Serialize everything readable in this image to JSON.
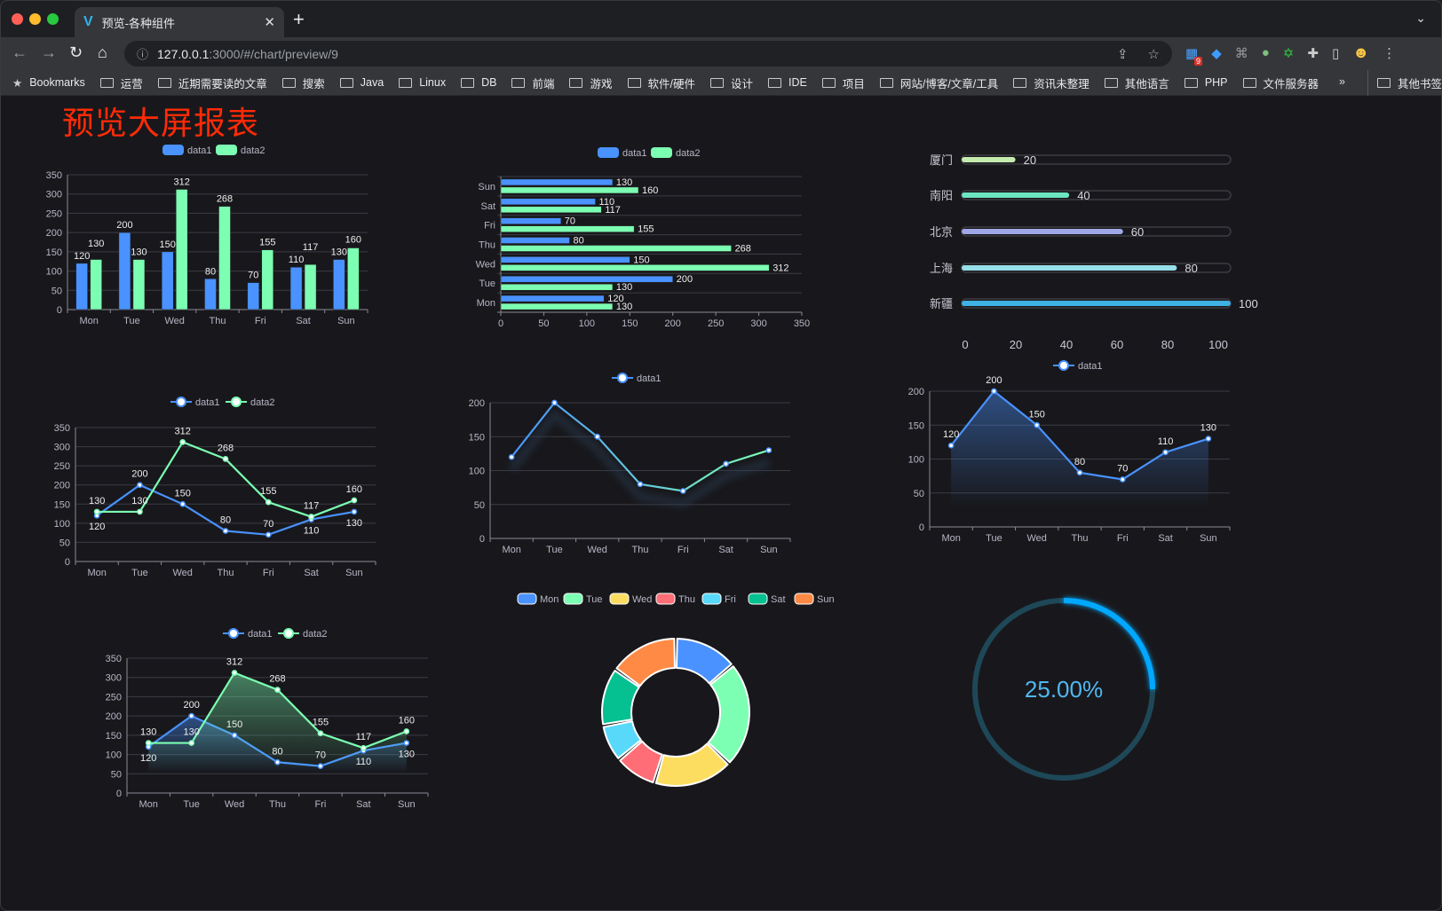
{
  "browser": {
    "tab_title": "预览-各种组件",
    "url_host": "127.0.0.1",
    "url_rest": ":3000/#/chart/preview/9",
    "extension_badge": "9",
    "bookmarks_label": "Bookmarks",
    "bookmarks": [
      "运营",
      "近期需要读的文章",
      "搜索",
      "Java",
      "Linux",
      "DB",
      "前端",
      "游戏",
      "软件/硬件",
      "设计",
      "IDE",
      "项目",
      "网站/博客/文章/工具",
      "资讯未整理",
      "其他语言",
      "PHP",
      "文件服务器"
    ],
    "more": "»",
    "other_bookmarks": "其他书签"
  },
  "page_title": "预览大屏报表",
  "colors": {
    "blue": "#4992ff",
    "green": "#7cffb2",
    "yellow": "#fddd60",
    "red": "#ff6e76",
    "cyan": "#58d9f9",
    "teal": "#05c091",
    "orange": "#ff8a45",
    "title": "#ff2b06",
    "gauge": "#00a8ff"
  },
  "chart_data": [
    {
      "type": "bar",
      "orientation": "vertical",
      "categories": [
        "Mon",
        "Tue",
        "Wed",
        "Thu",
        "Fri",
        "Sat",
        "Sun"
      ],
      "ylim": [
        0,
        350
      ],
      "yticks": [
        0,
        50,
        100,
        150,
        200,
        250,
        300,
        350
      ],
      "labels": true,
      "legend": "top",
      "series": [
        {
          "name": "data1",
          "values": [
            120,
            200,
            150,
            80,
            70,
            110,
            130
          ]
        },
        {
          "name": "data2",
          "values": [
            130,
            130,
            312,
            268,
            155,
            117,
            160
          ]
        }
      ]
    },
    {
      "type": "bar",
      "orientation": "horizontal",
      "categories": [
        "Mon",
        "Tue",
        "Wed",
        "Thu",
        "Fri",
        "Sat",
        "Sun"
      ],
      "xlim": [
        0,
        350
      ],
      "xticks": [
        0,
        50,
        100,
        150,
        200,
        250,
        300,
        350
      ],
      "labels": true,
      "legend": "top",
      "series": [
        {
          "name": "data1",
          "values": [
            120,
            200,
            150,
            80,
            70,
            110,
            130
          ]
        },
        {
          "name": "data2",
          "values": [
            130,
            130,
            312,
            268,
            155,
            117,
            160
          ]
        }
      ]
    },
    {
      "type": "bar",
      "orientation": "horizontal",
      "style": "progress",
      "categories": [
        "厦门",
        "南阳",
        "北京",
        "上海",
        "新疆"
      ],
      "xlim": [
        0,
        100
      ],
      "xticks": [
        0,
        20,
        40,
        60,
        80,
        100
      ],
      "labels": true,
      "colors": [
        "#c4ebad",
        "#6be6c1",
        "#a0a7e6",
        "#96dee8",
        "#3fb1e3"
      ],
      "series": [
        {
          "values": [
            20,
            40,
            60,
            80,
            100
          ]
        }
      ]
    },
    {
      "type": "line",
      "categories": [
        "Mon",
        "Tue",
        "Wed",
        "Thu",
        "Fri",
        "Sat",
        "Sun"
      ],
      "ylim": [
        0,
        350
      ],
      "yticks": [
        0,
        50,
        100,
        150,
        200,
        250,
        300,
        350
      ],
      "labels": true,
      "legend": "top",
      "series": [
        {
          "name": "data1",
          "values": [
            120,
            200,
            150,
            80,
            70,
            110,
            130
          ]
        },
        {
          "name": "data2",
          "values": [
            130,
            130,
            312,
            268,
            155,
            117,
            160
          ]
        }
      ]
    },
    {
      "type": "line",
      "style": "gradient",
      "categories": [
        "Mon",
        "Tue",
        "Wed",
        "Thu",
        "Fri",
        "Sat",
        "Sun"
      ],
      "ylim": [
        0,
        200
      ],
      "yticks": [
        0,
        50,
        100,
        150,
        200
      ],
      "labels": false,
      "legend": "top",
      "series": [
        {
          "name": "data1",
          "values": [
            120,
            200,
            150,
            80,
            70,
            110,
            130
          ]
        }
      ]
    },
    {
      "type": "area",
      "categories": [
        "Mon",
        "Tue",
        "Wed",
        "Thu",
        "Fri",
        "Sat",
        "Sun"
      ],
      "ylim": [
        0,
        200
      ],
      "yticks": [
        0,
        50,
        100,
        150,
        200
      ],
      "labels": true,
      "legend": "top",
      "series": [
        {
          "name": "data1",
          "values": [
            120,
            200,
            150,
            80,
            70,
            110,
            130
          ]
        }
      ]
    },
    {
      "type": "area",
      "categories": [
        "Mon",
        "Tue",
        "Wed",
        "Thu",
        "Fri",
        "Sat",
        "Sun"
      ],
      "ylim": [
        0,
        350
      ],
      "yticks": [
        0,
        50,
        100,
        150,
        200,
        250,
        300,
        350
      ],
      "labels": true,
      "legend": "top",
      "series": [
        {
          "name": "data1",
          "values": [
            120,
            200,
            150,
            80,
            70,
            110,
            130
          ]
        },
        {
          "name": "data2",
          "values": [
            130,
            130,
            312,
            268,
            155,
            117,
            160
          ]
        }
      ]
    },
    {
      "type": "pie",
      "style": "donut",
      "legend": "top",
      "categories": [
        "Mon",
        "Tue",
        "Wed",
        "Thu",
        "Fri",
        "Sat",
        "Sun"
      ],
      "values": [
        120,
        200,
        150,
        80,
        70,
        110,
        130
      ]
    },
    {
      "type": "gauge",
      "value": 0.25,
      "label": "25.00%"
    }
  ]
}
